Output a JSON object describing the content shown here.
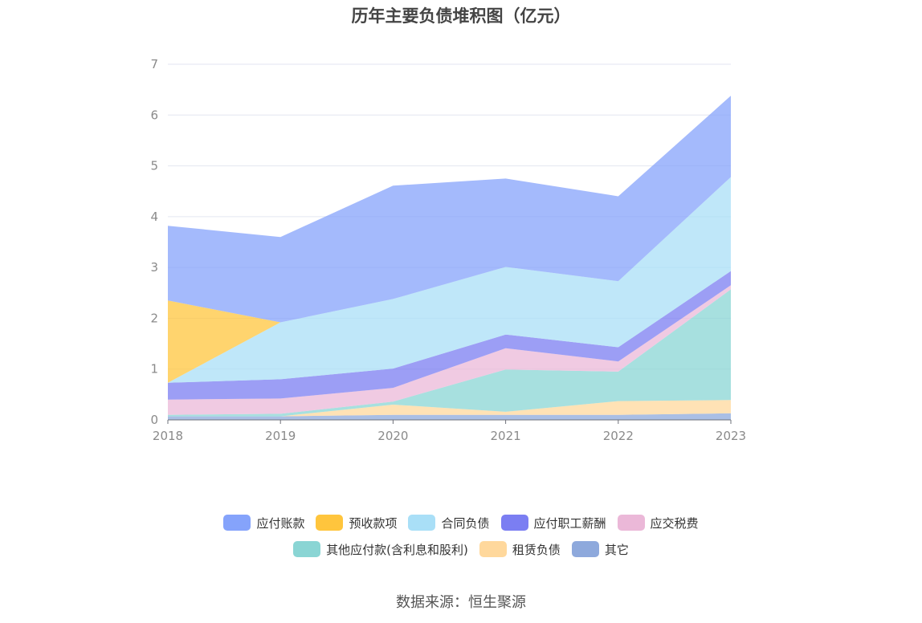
{
  "chart_data": {
    "type": "area",
    "stacked": true,
    "title": "历年主要负债堆积图（亿元）",
    "x": [
      "2018",
      "2019",
      "2020",
      "2021",
      "2022",
      "2023"
    ],
    "ylim": [
      0,
      7
    ],
    "yticks": [
      "0",
      "1",
      "2",
      "3",
      "4",
      "5",
      "6",
      "7"
    ],
    "grid": true,
    "legend_position": "bottom",
    "series": [
      {
        "name": "其它",
        "color": "#8ea9dc",
        "values": [
          0.07,
          0.07,
          0.1,
          0.1,
          0.1,
          0.13
        ]
      },
      {
        "name": "租赁负债",
        "color": "#ffd89c",
        "values": [
          0.0,
          0.0,
          0.2,
          0.06,
          0.27,
          0.26
        ]
      },
      {
        "name": "其他应付款(含利息和股利)",
        "color": "#8ad5d4",
        "values": [
          0.03,
          0.05,
          0.06,
          0.83,
          0.58,
          2.18
        ]
      },
      {
        "name": "应交税费",
        "color": "#ebb8d8",
        "values": [
          0.3,
          0.3,
          0.27,
          0.42,
          0.2,
          0.08
        ]
      },
      {
        "name": "应付职工薪酬",
        "color": "#7b7ef2",
        "values": [
          0.33,
          0.38,
          0.38,
          0.27,
          0.28,
          0.28
        ]
      },
      {
        "name": "合同负债",
        "color": "#a9dff7",
        "values": [
          0.0,
          1.12,
          1.37,
          1.33,
          1.3,
          1.85
        ]
      },
      {
        "name": "预收款项",
        "color": "#ffc53d",
        "values": [
          1.62,
          0.0,
          0.0,
          0.0,
          0.0,
          0.0
        ]
      },
      {
        "name": "应付账款",
        "color": "#85a3fb",
        "values": [
          1.47,
          1.68,
          2.23,
          1.74,
          1.67,
          1.6
        ]
      }
    ],
    "legend": [
      [
        "应付账款",
        "预收款项",
        "合同负债",
        "应付职工薪酬",
        "应交税费"
      ],
      [
        "其他应付款(含利息和股利)",
        "租赁负债",
        "其它"
      ]
    ]
  },
  "source": "数据来源：恒生聚源"
}
